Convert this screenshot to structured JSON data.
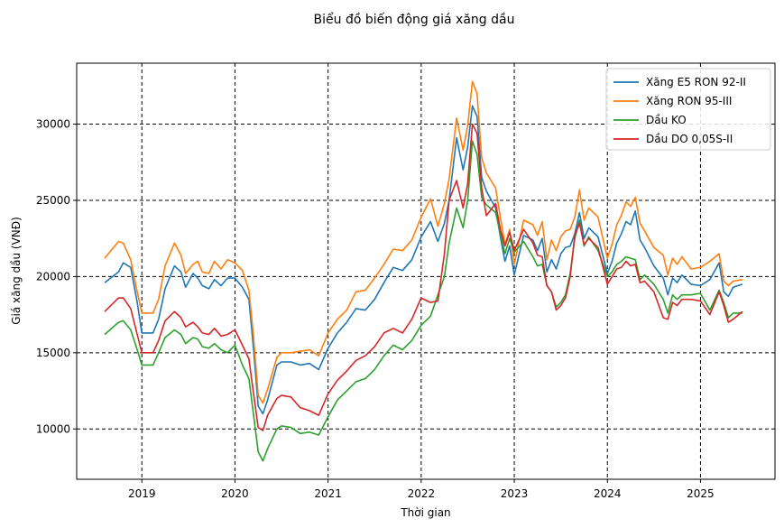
{
  "chart_data": {
    "type": "line",
    "title": "Biểu đồ biến động giá xăng dầu",
    "xlabel": "Thời gian",
    "ylabel": "Giá xăng dầu (VNĐ)",
    "xlim": [
      2018.3,
      2025.8
    ],
    "ylim": [
      6700,
      34000
    ],
    "x_ticks": [
      2019,
      2020,
      2021,
      2022,
      2023,
      2024,
      2025
    ],
    "x_tick_labels": [
      "2019",
      "2020",
      "2021",
      "2022",
      "2023",
      "2024",
      "2025"
    ],
    "y_ticks": [
      10000,
      15000,
      20000,
      25000,
      30000
    ],
    "y_tick_labels": [
      "10000",
      "15000",
      "20000",
      "25000",
      "30000"
    ],
    "grid": true,
    "grid_style": "dashed",
    "legend_position": "top-right",
    "series": [
      {
        "name": "Xăng E5 RON 92-II",
        "color": "#1f77b4",
        "x": [
          2018.6,
          2018.75,
          2018.8,
          2018.88,
          2018.95,
          2019.0,
          2019.12,
          2019.18,
          2019.25,
          2019.35,
          2019.42,
          2019.47,
          2019.55,
          2019.6,
          2019.65,
          2019.72,
          2019.78,
          2019.85,
          2019.92,
          2020.0,
          2020.08,
          2020.15,
          2020.2,
          2020.25,
          2020.3,
          2020.35,
          2020.45,
          2020.5,
          2020.6,
          2020.7,
          2020.8,
          2020.9,
          2021.0,
          2021.1,
          2021.2,
          2021.3,
          2021.4,
          2021.5,
          2021.6,
          2021.7,
          2021.8,
          2021.9,
          2022.0,
          2022.1,
          2022.18,
          2022.25,
          2022.3,
          2022.38,
          2022.45,
          2022.5,
          2022.55,
          2022.6,
          2022.65,
          2022.7,
          2022.8,
          2022.85,
          2022.9,
          2022.95,
          2023.0,
          2023.1,
          2023.2,
          2023.25,
          2023.3,
          2023.35,
          2023.4,
          2023.45,
          2023.5,
          2023.55,
          2023.6,
          2023.65,
          2023.7,
          2023.75,
          2023.8,
          2023.9,
          2024.0,
          2024.05,
          2024.1,
          2024.15,
          2024.2,
          2024.25,
          2024.3,
          2024.35,
          2024.4,
          2024.5,
          2024.6,
          2024.65,
          2024.7,
          2024.75,
          2024.8,
          2024.9,
          2025.0,
          2025.1,
          2025.2,
          2025.25,
          2025.3,
          2025.35,
          2025.45
        ],
        "y": [
          19600,
          20300,
          20900,
          20600,
          18300,
          16300,
          16300,
          17200,
          19200,
          20700,
          20300,
          19300,
          20200,
          19900,
          19400,
          19200,
          19800,
          19400,
          19900,
          19900,
          19300,
          18500,
          15200,
          11500,
          11000,
          11900,
          14200,
          14400,
          14400,
          14200,
          14300,
          13900,
          15300,
          16300,
          17000,
          17900,
          17800,
          18500,
          19600,
          20600,
          20400,
          21100,
          22600,
          23600,
          22300,
          23500,
          25000,
          29100,
          27000,
          28500,
          31200,
          30500,
          26500,
          25600,
          24500,
          22600,
          21000,
          22000,
          20100,
          22700,
          22400,
          21700,
          22500,
          20300,
          21100,
          20500,
          21500,
          21900,
          22000,
          22800,
          24200,
          22500,
          23200,
          22600,
          20200,
          21000,
          22200,
          22800,
          23600,
          23400,
          24300,
          22400,
          21900,
          20700,
          19900,
          18800,
          19900,
          19600,
          20100,
          19500,
          19400,
          19800,
          20900,
          19000,
          18700,
          19300,
          19500
        ]
      },
      {
        "name": "Xăng RON 95-III",
        "color": "#ff7f0e",
        "x": [
          2018.6,
          2018.75,
          2018.8,
          2018.88,
          2018.95,
          2019.0,
          2019.12,
          2019.18,
          2019.25,
          2019.35,
          2019.42,
          2019.47,
          2019.55,
          2019.6,
          2019.65,
          2019.72,
          2019.78,
          2019.85,
          2019.92,
          2020.0,
          2020.08,
          2020.15,
          2020.2,
          2020.25,
          2020.3,
          2020.35,
          2020.45,
          2020.5,
          2020.6,
          2020.7,
          2020.8,
          2020.9,
          2021.0,
          2021.1,
          2021.2,
          2021.3,
          2021.4,
          2021.5,
          2021.6,
          2021.7,
          2021.8,
          2021.9,
          2022.0,
          2022.1,
          2022.18,
          2022.25,
          2022.3,
          2022.38,
          2022.45,
          2022.5,
          2022.55,
          2022.6,
          2022.65,
          2022.7,
          2022.8,
          2022.85,
          2022.9,
          2022.95,
          2023.0,
          2023.1,
          2023.2,
          2023.25,
          2023.3,
          2023.35,
          2023.4,
          2023.45,
          2023.5,
          2023.55,
          2023.6,
          2023.65,
          2023.7,
          2023.75,
          2023.8,
          2023.9,
          2024.0,
          2024.05,
          2024.1,
          2024.15,
          2024.2,
          2024.25,
          2024.3,
          2024.35,
          2024.4,
          2024.5,
          2024.6,
          2024.65,
          2024.7,
          2024.75,
          2024.8,
          2024.9,
          2025.0,
          2025.1,
          2025.2,
          2025.25,
          2025.3,
          2025.35,
          2025.45
        ],
        "y": [
          21200,
          22300,
          22200,
          21100,
          19000,
          17600,
          17600,
          18500,
          20700,
          22200,
          21400,
          20200,
          20800,
          21000,
          20300,
          20200,
          21000,
          20500,
          21100,
          20900,
          20400,
          19100,
          16000,
          12200,
          11700,
          12600,
          14700,
          15000,
          15000,
          15100,
          15200,
          14800,
          16300,
          17200,
          17800,
          19000,
          19100,
          19900,
          20800,
          21800,
          21700,
          22400,
          23900,
          25100,
          23300,
          24800,
          26400,
          30400,
          28300,
          29900,
          32800,
          32000,
          27800,
          26800,
          25800,
          23900,
          22100,
          23100,
          20800,
          23700,
          23400,
          22700,
          23600,
          21100,
          22400,
          21700,
          22600,
          23000,
          23100,
          23900,
          25700,
          23700,
          24500,
          23900,
          21200,
          22100,
          23400,
          24000,
          24900,
          24600,
          25200,
          23500,
          23000,
          21900,
          21400,
          20100,
          21200,
          20800,
          21300,
          20500,
          20600,
          21000,
          21500,
          19700,
          19400,
          19700,
          19800
        ]
      },
      {
        "name": "Dầu KO",
        "color": "#2ca02c",
        "x": [
          2018.6,
          2018.75,
          2018.8,
          2018.88,
          2018.95,
          2019.0,
          2019.12,
          2019.18,
          2019.25,
          2019.35,
          2019.42,
          2019.47,
          2019.55,
          2019.6,
          2019.65,
          2019.72,
          2019.78,
          2019.85,
          2019.92,
          2020.0,
          2020.08,
          2020.15,
          2020.2,
          2020.25,
          2020.3,
          2020.35,
          2020.45,
          2020.5,
          2020.6,
          2020.7,
          2020.8,
          2020.9,
          2021.0,
          2021.1,
          2021.2,
          2021.3,
          2021.4,
          2021.5,
          2021.6,
          2021.7,
          2021.8,
          2021.9,
          2022.0,
          2022.1,
          2022.18,
          2022.25,
          2022.3,
          2022.38,
          2022.45,
          2022.5,
          2022.55,
          2022.6,
          2022.65,
          2022.7,
          2022.8,
          2022.85,
          2022.9,
          2022.95,
          2023.0,
          2023.1,
          2023.2,
          2023.25,
          2023.3,
          2023.35,
          2023.4,
          2023.45,
          2023.5,
          2023.55,
          2023.6,
          2023.65,
          2023.7,
          2023.75,
          2023.8,
          2023.9,
          2024.0,
          2024.05,
          2024.1,
          2024.15,
          2024.2,
          2024.25,
          2024.3,
          2024.35,
          2024.4,
          2024.5,
          2024.6,
          2024.65,
          2024.7,
          2024.75,
          2024.8,
          2024.9,
          2025.0,
          2025.1,
          2025.2,
          2025.25,
          2025.3,
          2025.35,
          2025.45
        ],
        "y": [
          16200,
          17000,
          17100,
          16500,
          15200,
          14200,
          14200,
          15000,
          16000,
          16500,
          16200,
          15600,
          16000,
          15900,
          15400,
          15300,
          15600,
          15200,
          15000,
          15500,
          14200,
          13300,
          10900,
          8500,
          7900,
          8700,
          10000,
          10200,
          10100,
          9700,
          9800,
          9600,
          10800,
          11900,
          12500,
          13100,
          13300,
          13900,
          14800,
          15500,
          15200,
          15800,
          16800,
          17400,
          18800,
          20000,
          22200,
          24500,
          23200,
          25000,
          28900,
          28000,
          25200,
          24700,
          24200,
          22800,
          21500,
          22500,
          21600,
          22300,
          21300,
          20700,
          20800,
          19400,
          19000,
          18000,
          18300,
          18800,
          20200,
          22500,
          23700,
          22000,
          22600,
          21700,
          20000,
          20300,
          20800,
          21000,
          21300,
          21200,
          21100,
          19800,
          20100,
          19500,
          18500,
          17600,
          18800,
          18500,
          18800,
          18800,
          18900,
          17800,
          19100,
          18300,
          17300,
          17600,
          17600
        ]
      },
      {
        "name": "Dầu DO 0,05S-II",
        "color": "#d62728",
        "x": [
          2018.6,
          2018.75,
          2018.8,
          2018.88,
          2018.95,
          2019.0,
          2019.12,
          2019.18,
          2019.25,
          2019.35,
          2019.42,
          2019.47,
          2019.55,
          2019.6,
          2019.65,
          2019.72,
          2019.78,
          2019.85,
          2019.92,
          2020.0,
          2020.08,
          2020.15,
          2020.2,
          2020.25,
          2020.3,
          2020.35,
          2020.45,
          2020.5,
          2020.6,
          2020.7,
          2020.8,
          2020.9,
          2021.0,
          2021.1,
          2021.2,
          2021.3,
          2021.4,
          2021.5,
          2021.6,
          2021.7,
          2021.8,
          2021.9,
          2022.0,
          2022.1,
          2022.18,
          2022.25,
          2022.3,
          2022.38,
          2022.45,
          2022.5,
          2022.55,
          2022.6,
          2022.65,
          2022.7,
          2022.8,
          2022.85,
          2022.9,
          2022.95,
          2023.0,
          2023.1,
          2023.2,
          2023.25,
          2023.3,
          2023.35,
          2023.4,
          2023.45,
          2023.5,
          2023.55,
          2023.6,
          2023.65,
          2023.7,
          2023.75,
          2023.8,
          2023.9,
          2024.0,
          2024.05,
          2024.1,
          2024.15,
          2024.2,
          2024.25,
          2024.3,
          2024.35,
          2024.4,
          2024.5,
          2024.6,
          2024.65,
          2024.7,
          2024.75,
          2024.8,
          2024.9,
          2025.0,
          2025.1,
          2025.2,
          2025.25,
          2025.3,
          2025.35,
          2025.45
        ],
        "y": [
          17700,
          18600,
          18600,
          17900,
          16200,
          15000,
          15000,
          15800,
          17100,
          17700,
          17300,
          16700,
          17000,
          16700,
          16300,
          16200,
          16600,
          16100,
          16200,
          16500,
          15500,
          14600,
          12300,
          10100,
          9900,
          10900,
          12000,
          12200,
          12100,
          11400,
          11200,
          10900,
          12300,
          13200,
          13800,
          14500,
          14800,
          15400,
          16300,
          16600,
          16300,
          17200,
          18600,
          18300,
          18400,
          21500,
          25000,
          26300,
          24500,
          26100,
          30000,
          29400,
          25800,
          24000,
          24800,
          23100,
          22000,
          22900,
          21700,
          23100,
          22200,
          21400,
          21300,
          19400,
          19000,
          17800,
          18100,
          18600,
          20000,
          22700,
          23500,
          22100,
          22500,
          21900,
          19500,
          20000,
          20500,
          20600,
          21000,
          20700,
          20800,
          19600,
          19700,
          19000,
          17300,
          17200,
          18300,
          18100,
          18500,
          18500,
          18400,
          17500,
          19000,
          18100,
          17000,
          17200,
          17700
        ]
      }
    ]
  }
}
